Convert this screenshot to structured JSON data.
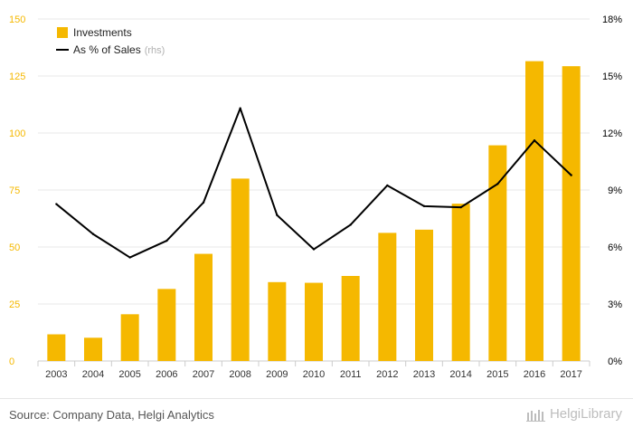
{
  "chart_data": {
    "type": "bar+line",
    "categories": [
      "2003",
      "2004",
      "2005",
      "2006",
      "2007",
      "2008",
      "2009",
      "2010",
      "2011",
      "2012",
      "2013",
      "2014",
      "2015",
      "2016",
      "2017"
    ],
    "series": [
      {
        "name": "Investments",
        "type": "bar",
        "axis": "left",
        "color": "#f5b800",
        "values": [
          11.7,
          10.2,
          20.5,
          31.6,
          47.0,
          80.0,
          34.6,
          34.3,
          37.3,
          56.2,
          57.6,
          69.0,
          94.6,
          131.5,
          129.3
        ]
      },
      {
        "name": "As % of Sales",
        "type": "line",
        "axis": "right",
        "color": "#000000",
        "values": [
          8.26,
          6.68,
          5.45,
          6.33,
          8.34,
          13.3,
          7.68,
          5.88,
          7.17,
          9.24,
          8.15,
          8.09,
          9.32,
          11.61,
          9.78
        ]
      }
    ],
    "y_left": {
      "range": [
        0,
        150
      ],
      "ticks": [
        "0",
        "25",
        "50",
        "75",
        "100",
        "125",
        "150"
      ],
      "tick_color": "#f5b800"
    },
    "y_right": {
      "range": [
        0,
        18
      ],
      "ticks": [
        "0%",
        "3%",
        "6%",
        "9%",
        "12%",
        "15%",
        "18%"
      ],
      "tick_color": "#000000"
    },
    "grid": true,
    "legend": {
      "placement": "top-left",
      "items": [
        {
          "label": "Investments",
          "suffix": ""
        },
        {
          "label": "As % of Sales",
          "suffix": "(rhs)"
        }
      ]
    }
  },
  "footer": {
    "source": "Source: Company Data, Helgi Analytics",
    "brand": "HelgiLibrary"
  }
}
